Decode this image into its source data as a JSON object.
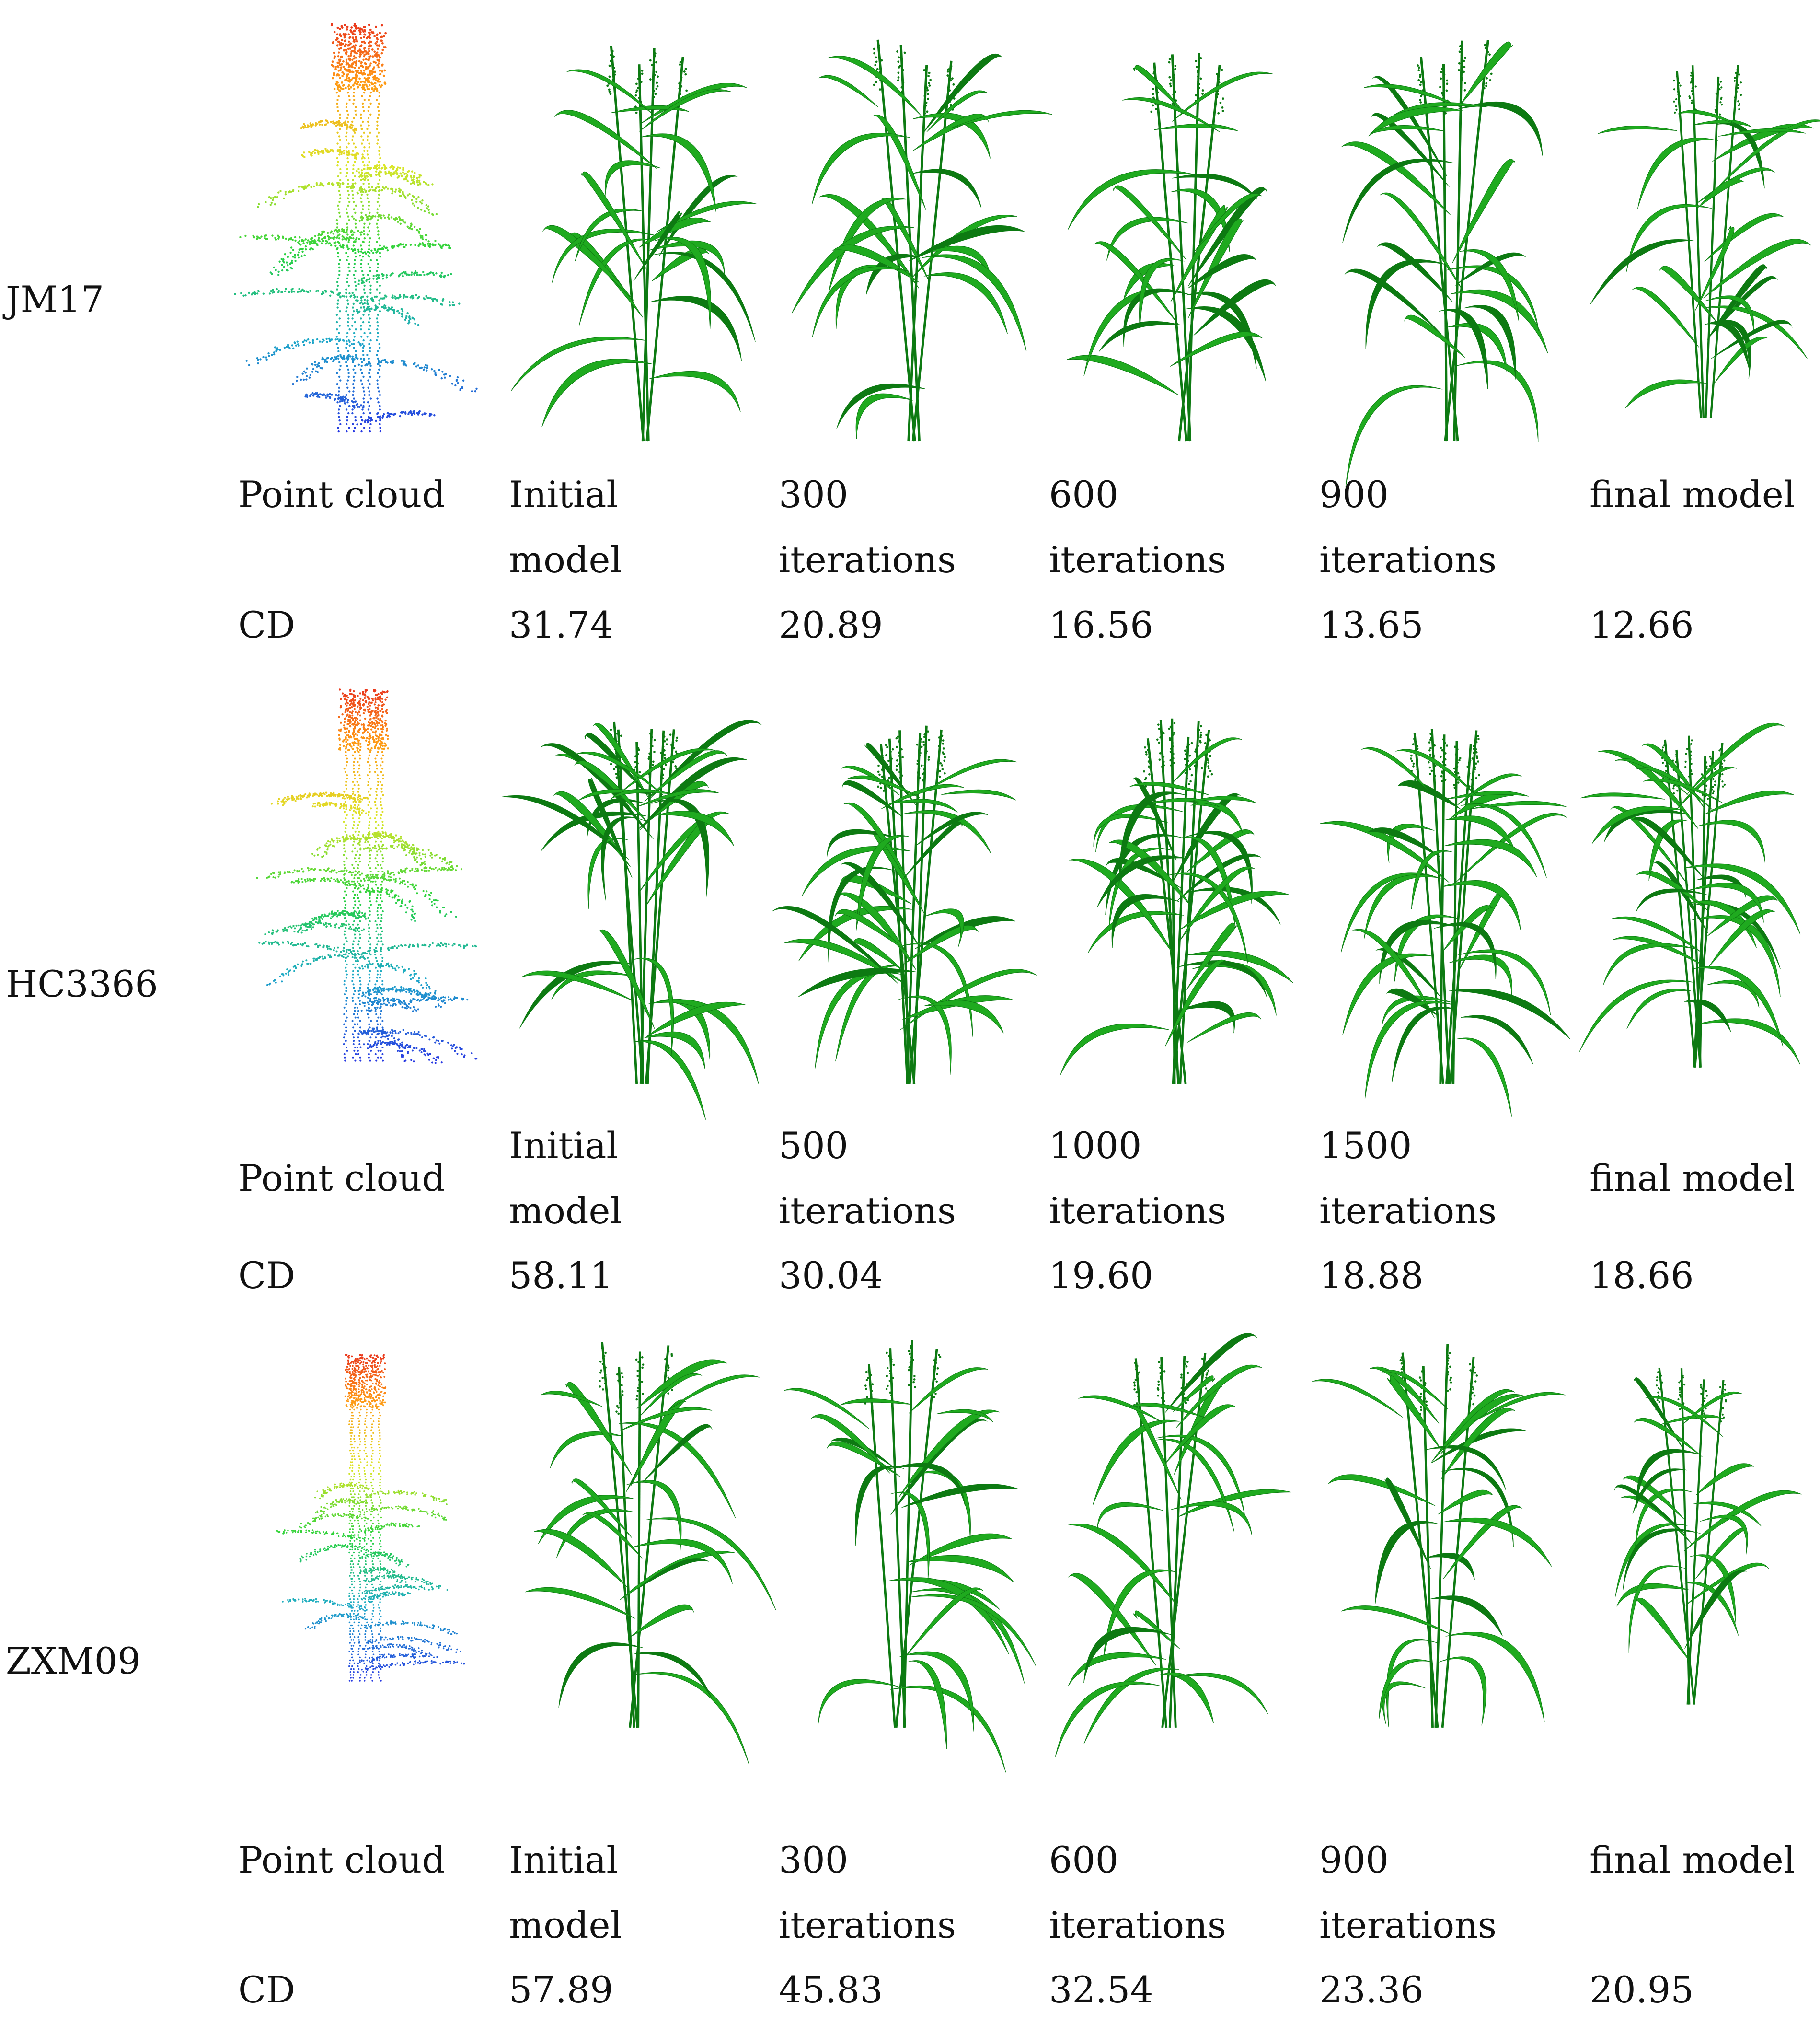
{
  "figure": {
    "rows": [
      {
        "variety": "JM17",
        "columns": [
          {
            "label_lines": [
              "Point cloud"
            ],
            "cd": "CD"
          },
          {
            "label_lines": [
              "Initial",
              "model"
            ],
            "cd": "31.74"
          },
          {
            "label_lines": [
              "300",
              "iterations"
            ],
            "cd": "20.89"
          },
          {
            "label_lines": [
              "600",
              "iterations"
            ],
            "cd": "16.56"
          },
          {
            "label_lines": [
              "900",
              "iterations"
            ],
            "cd": "13.65"
          },
          {
            "label_lines": [
              "final model"
            ],
            "cd": "12.66"
          }
        ]
      },
      {
        "variety": "HC3366",
        "columns": [
          {
            "label_lines": [
              "Point cloud"
            ],
            "cd": "CD"
          },
          {
            "label_lines": [
              "Initial",
              "model"
            ],
            "cd": "58.11"
          },
          {
            "label_lines": [
              "500",
              "iterations"
            ],
            "cd": "30.04"
          },
          {
            "label_lines": [
              "1000",
              "iterations"
            ],
            "cd": "19.60"
          },
          {
            "label_lines": [
              "1500",
              "iterations"
            ],
            "cd": "18.88"
          },
          {
            "label_lines": [
              "final model"
            ],
            "cd": "18.66"
          }
        ]
      },
      {
        "variety": "ZXM09",
        "columns": [
          {
            "label_lines": [
              "Point cloud"
            ],
            "cd": "CD"
          },
          {
            "label_lines": [
              "Initial",
              "model"
            ],
            "cd": "57.89"
          },
          {
            "label_lines": [
              "300",
              "iterations"
            ],
            "cd": "45.83"
          },
          {
            "label_lines": [
              "600",
              "iterations"
            ],
            "cd": "32.54"
          },
          {
            "label_lines": [
              "900",
              "iterations"
            ],
            "cd": "23.36"
          },
          {
            "label_lines": [
              "final model"
            ],
            "cd": "20.95"
          }
        ]
      }
    ]
  },
  "colors": {
    "leaf": "#1faa1f",
    "leaf_dark": "#0d7a12",
    "background": "#ffffff"
  }
}
